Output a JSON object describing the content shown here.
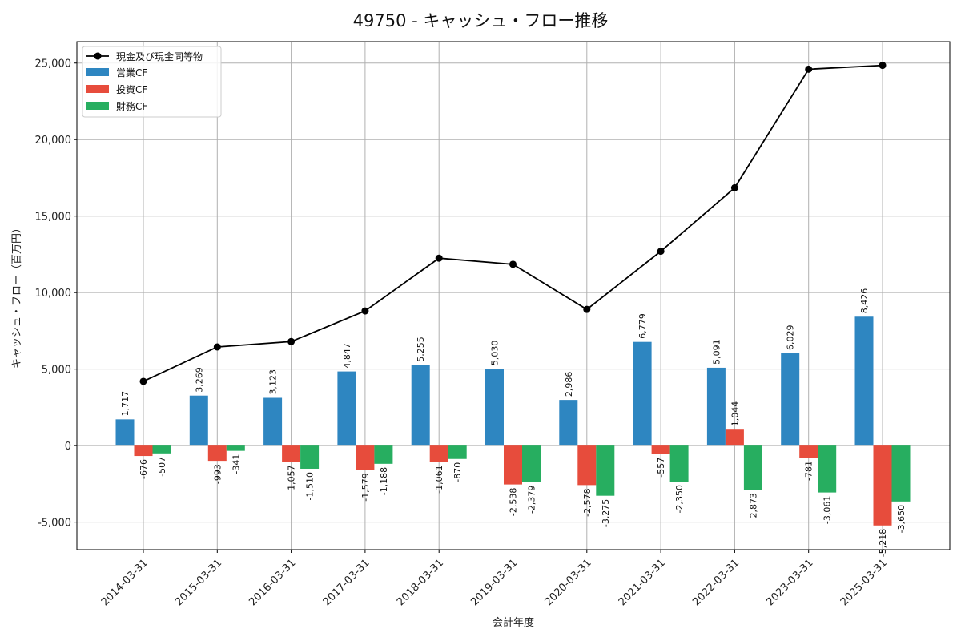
{
  "chart_data": {
    "type": "bar+line",
    "title": "49750 - キャッシュ・フロー推移",
    "xlabel": "会計年度",
    "ylabel": "キャッシュ・フロー（百万円）",
    "ylim": [
      -6800,
      26400
    ],
    "yticks": [
      -5000,
      0,
      5000,
      10000,
      15000,
      20000,
      25000
    ],
    "ytick_labels": [
      "-5,000",
      "0",
      "5,000",
      "10,000",
      "15,000",
      "20,000",
      "25,000"
    ],
    "grid": true,
    "legend_position": "top-left",
    "categories": [
      "2014-03-31",
      "2015-03-31",
      "2016-03-31",
      "2017-03-31",
      "2018-03-31",
      "2019-03-31",
      "2020-03-31",
      "2021-03-31",
      "2022-03-31",
      "2023-03-31",
      "2025-03-31"
    ],
    "series": [
      {
        "name": "営業CF",
        "kind": "bar",
        "color": "#2e86c1",
        "values": [
          1717,
          3269,
          3123,
          4847,
          5255,
          5030,
          2986,
          6779,
          5091,
          6029,
          8426
        ],
        "labels": [
          "1,717",
          "3,269",
          "3,123",
          "4,847",
          "5,255",
          "5,030",
          "2,986",
          "6,779",
          "5,091",
          "6,029",
          "8,426"
        ]
      },
      {
        "name": "投資CF",
        "kind": "bar",
        "color": "#e74c3c",
        "values": [
          -676,
          -993,
          -1057,
          -1579,
          -1061,
          -2538,
          -2578,
          -557,
          1044,
          -781,
          -5218
        ],
        "labels": [
          "-676",
          "-993",
          "-1,057",
          "-1,579",
          "-1,061",
          "-2,538",
          "-2,578",
          "-557",
          "1,044",
          "-781",
          "-5,218"
        ]
      },
      {
        "name": "財務CF",
        "kind": "bar",
        "color": "#27ae60",
        "values": [
          -507,
          -341,
          -1510,
          -1188,
          -870,
          -2379,
          -3275,
          -2350,
          -2873,
          -3061,
          -3650
        ],
        "labels": [
          "-507",
          "-341",
          "-1,510",
          "-1,188",
          "-870",
          "-2,379",
          "-3,275",
          "-2,350",
          "-2,873",
          "-3,061",
          "-3,650"
        ]
      },
      {
        "name": "現金及び現金同等物",
        "kind": "line",
        "color": "#000000",
        "values": [
          4200,
          6450,
          6800,
          8800,
          12250,
          11850,
          8900,
          12700,
          16850,
          24600,
          24850
        ]
      }
    ]
  }
}
